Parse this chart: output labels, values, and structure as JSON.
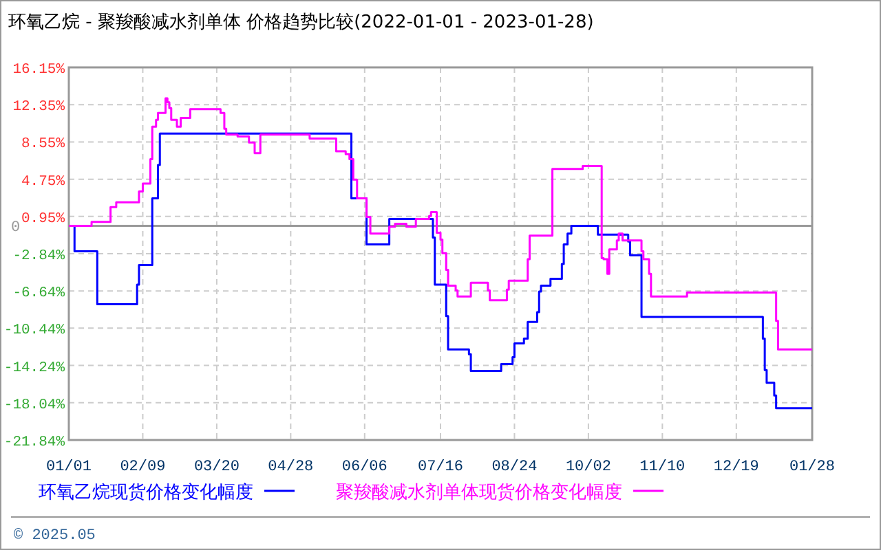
{
  "chart_data": {
    "type": "step",
    "title": "环氧乙烷 - 聚羧酸减水剂单体 价格趋势比较(2022-01-01 - 2023-01-28)",
    "xlim": [
      "2022-01-01",
      "2023-01-28"
    ],
    "xticks": [
      {
        "value": "2022-01-01",
        "label": "01/01"
      },
      {
        "value": "2022-02-09",
        "label": "02/09"
      },
      {
        "value": "2022-03-20",
        "label": "03/20"
      },
      {
        "value": "2022-04-28",
        "label": "04/28"
      },
      {
        "value": "2022-06-06",
        "label": "06/06"
      },
      {
        "value": "2022-07-16",
        "label": "07/16"
      },
      {
        "value": "2022-08-24",
        "label": "08/24"
      },
      {
        "value": "2022-10-02",
        "label": "10/02"
      },
      {
        "value": "2022-11-10",
        "label": "11/10"
      },
      {
        "value": "2022-12-19",
        "label": "12/19"
      },
      {
        "value": "2023-01-28",
        "label": "01/28"
      }
    ],
    "ylim": [
      -21.84,
      16.15
    ],
    "yticks": [
      {
        "value": 16.15,
        "label": "16.15%"
      },
      {
        "value": 12.35,
        "label": "12.35%"
      },
      {
        "value": 8.55,
        "label": "8.55%"
      },
      {
        "value": 4.75,
        "label": "4.75%"
      },
      {
        "value": 0.95,
        "label": "0.95%"
      },
      {
        "value": -2.84,
        "label": "-2.84%"
      },
      {
        "value": -6.64,
        "label": "-6.64%"
      },
      {
        "value": -10.44,
        "label": "-10.44%"
      },
      {
        "value": -14.24,
        "label": "-14.24%"
      },
      {
        "value": -18.04,
        "label": "-18.04%"
      },
      {
        "value": -21.84,
        "label": "-21.84%"
      }
    ],
    "ref_lines": [
      {
        "axis": "y",
        "value": 0,
        "label": "0",
        "color": "#999999"
      }
    ],
    "grid": true,
    "legend": "bottom",
    "annotations": [
      "© 2025.05"
    ],
    "series": [
      {
        "name": "环氧乙烷现货价格变化幅度",
        "color": "#0000ff",
        "x": [
          "2022-01-01",
          "2022-01-04",
          "2022-01-16",
          "2022-02-06",
          "2022-02-07",
          "2022-02-14",
          "2022-02-17",
          "2022-02-18",
          "2022-05-30",
          "2022-06-07",
          "2022-06-19",
          "2022-07-12",
          "2022-07-13",
          "2022-07-19",
          "2022-07-20",
          "2022-07-31",
          "2022-08-01",
          "2022-08-17",
          "2022-08-23",
          "2022-08-24",
          "2022-08-29",
          "2022-08-31",
          "2022-09-05",
          "2022-09-06",
          "2022-09-07",
          "2022-09-12",
          "2022-09-18",
          "2022-09-19",
          "2022-09-21",
          "2022-09-23",
          "2022-10-07",
          "2022-10-23",
          "2022-10-24",
          "2022-10-30",
          "2023-01-02",
          "2023-01-03",
          "2023-01-04",
          "2023-01-08",
          "2023-01-09",
          "2023-01-28"
        ],
        "values": [
          0,
          -2.6,
          -8.0,
          -6.0,
          -4.0,
          2.8,
          6.2,
          9.4,
          2.8,
          -1.9,
          0.7,
          -1.2,
          -6.0,
          -9.2,
          -12.6,
          -13.1,
          -14.8,
          -14.1,
          -13.4,
          -12.0,
          -11.5,
          -9.8,
          -8.8,
          -6.7,
          -6.1,
          -5.4,
          -3.9,
          -1.9,
          -0.8,
          0.0,
          -0.9,
          -1.6,
          -3.0,
          -9.3,
          -11.5,
          -14.7,
          -16.0,
          -17.3,
          -18.6,
          -18.6
        ]
      },
      {
        "name": "聚羧酸减水剂单体现货价格变化幅度",
        "color": "#ff00ff",
        "x": [
          "2022-01-01",
          "2022-01-13",
          "2022-01-23",
          "2022-01-26",
          "2022-02-07",
          "2022-02-09",
          "2022-02-13",
          "2022-02-14",
          "2022-02-16",
          "2022-02-17",
          "2022-02-21",
          "2022-02-22",
          "2022-02-23",
          "2022-02-24",
          "2022-02-27",
          "2022-03-01",
          "2022-03-06",
          "2022-03-22",
          "2022-03-24",
          "2022-03-25",
          "2022-03-31",
          "2022-04-06",
          "2022-04-09",
          "2022-04-12",
          "2022-05-08",
          "2022-05-22",
          "2022-05-27",
          "2022-05-29",
          "2022-05-31",
          "2022-06-02",
          "2022-06-07",
          "2022-06-09",
          "2022-06-19",
          "2022-06-22",
          "2022-06-28",
          "2022-07-03",
          "2022-07-10",
          "2022-07-11",
          "2022-07-14",
          "2022-07-16",
          "2022-07-17",
          "2022-07-19",
          "2022-07-20",
          "2022-07-24",
          "2022-07-25",
          "2022-08-01",
          "2022-08-10",
          "2022-08-11",
          "2022-08-20",
          "2022-08-21",
          "2022-08-31",
          "2022-09-01",
          "2022-09-13",
          "2022-09-29",
          "2022-10-09",
          "2022-10-10",
          "2022-10-12",
          "2022-10-13",
          "2022-10-17",
          "2022-10-18",
          "2022-10-20",
          "2022-10-30",
          "2022-10-31",
          "2022-11-03",
          "2022-11-04",
          "2022-11-23",
          "2023-01-09",
          "2023-01-10",
          "2023-01-28"
        ],
        "values": [
          0,
          0.4,
          1.9,
          2.4,
          3.5,
          4.3,
          6.8,
          10.1,
          10.8,
          11.5,
          13.0,
          12.6,
          12.0,
          10.8,
          10.1,
          11.0,
          11.9,
          11.5,
          9.9,
          9.3,
          9.1,
          8.5,
          7.4,
          9.3,
          8.9,
          7.6,
          7.3,
          6.8,
          4.7,
          2.8,
          0.9,
          -0.8,
          -0.1,
          0.2,
          -0.1,
          0.7,
          1.0,
          1.4,
          -0.7,
          -1.4,
          -2.8,
          -4.5,
          -6.1,
          -6.6,
          -7.2,
          -5.8,
          -6.6,
          -7.6,
          -6.5,
          -5.6,
          -3.4,
          -1.0,
          5.8,
          6.1,
          -3.3,
          -3.4,
          -4.9,
          -2.4,
          -1.5,
          -0.8,
          -1.5,
          -2.6,
          -3.4,
          -4.9,
          -7.2,
          -6.8,
          -9.7,
          -12.6,
          -12.6
        ]
      }
    ]
  }
}
